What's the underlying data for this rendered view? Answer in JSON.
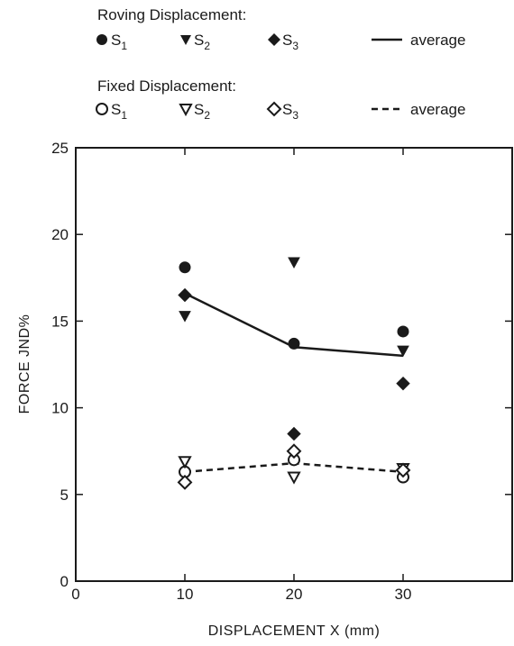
{
  "legend": {
    "roving_title": "Roving Displacement:",
    "fixed_title": "Fixed Displacement:",
    "s1": "S",
    "s1_sub": "1",
    "s2": "S",
    "s2_sub": "2",
    "s3": "S",
    "s3_sub": "3",
    "average": "average"
  },
  "chart_data": {
    "type": "scatter",
    "xlabel": "DISPLACEMENT  X  (mm)",
    "ylabel": "FORCE  JND%",
    "xlim": [
      0,
      40
    ],
    "ylim": [
      0,
      25
    ],
    "xticks": [
      0,
      10,
      20,
      30
    ],
    "yticks": [
      0,
      5,
      10,
      15,
      20,
      25
    ],
    "x": [
      10,
      20,
      30
    ],
    "series": [
      {
        "name": "Roving S1",
        "marker": "filled-circle",
        "values": [
          18.1,
          13.7,
          14.4
        ]
      },
      {
        "name": "Roving S2",
        "marker": "filled-triangle-down",
        "values": [
          15.3,
          18.4,
          13.3
        ]
      },
      {
        "name": "Roving S3",
        "marker": "filled-diamond",
        "values": [
          16.5,
          8.5,
          11.4
        ]
      },
      {
        "name": "Roving average",
        "marker": "solid-line",
        "values": [
          16.6,
          13.5,
          13.0
        ]
      },
      {
        "name": "Fixed S1",
        "marker": "open-circle",
        "values": [
          6.3,
          7.0,
          6.0
        ]
      },
      {
        "name": "Fixed S2",
        "marker": "open-triangle-down",
        "values": [
          6.9,
          6.0,
          6.5
        ]
      },
      {
        "name": "Fixed S3",
        "marker": "open-diamond",
        "values": [
          5.7,
          7.5,
          6.4
        ]
      },
      {
        "name": "Fixed average",
        "marker": "dashed-line",
        "values": [
          6.3,
          6.8,
          6.3
        ]
      }
    ]
  }
}
